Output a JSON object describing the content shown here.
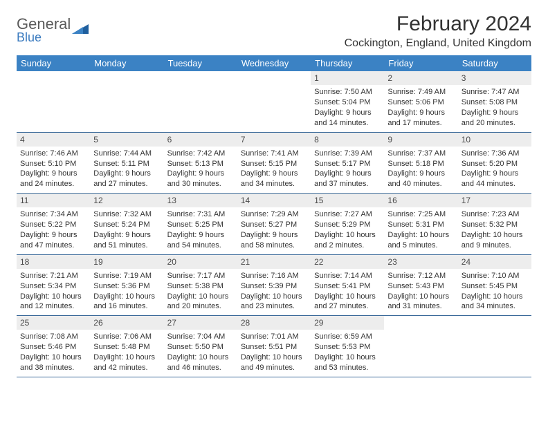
{
  "logo": {
    "text_top": "General",
    "text_bottom": "Blue"
  },
  "title": "February 2024",
  "location": "Cockington, England, United Kingdom",
  "colors": {
    "header_bg": "#3b82c4",
    "header_text": "#ffffff",
    "divider": "#3b6a9a",
    "daynum_bg": "#ededed",
    "logo_gray": "#5a5a5a",
    "logo_blue": "#3b7bbf"
  },
  "dow": [
    "Sunday",
    "Monday",
    "Tuesday",
    "Wednesday",
    "Thursday",
    "Friday",
    "Saturday"
  ],
  "weeks": [
    [
      null,
      null,
      null,
      null,
      {
        "n": "1",
        "sr": "Sunrise: 7:50 AM",
        "ss": "Sunset: 5:04 PM",
        "d1": "Daylight: 9 hours",
        "d2": "and 14 minutes."
      },
      {
        "n": "2",
        "sr": "Sunrise: 7:49 AM",
        "ss": "Sunset: 5:06 PM",
        "d1": "Daylight: 9 hours",
        "d2": "and 17 minutes."
      },
      {
        "n": "3",
        "sr": "Sunrise: 7:47 AM",
        "ss": "Sunset: 5:08 PM",
        "d1": "Daylight: 9 hours",
        "d2": "and 20 minutes."
      }
    ],
    [
      {
        "n": "4",
        "sr": "Sunrise: 7:46 AM",
        "ss": "Sunset: 5:10 PM",
        "d1": "Daylight: 9 hours",
        "d2": "and 24 minutes."
      },
      {
        "n": "5",
        "sr": "Sunrise: 7:44 AM",
        "ss": "Sunset: 5:11 PM",
        "d1": "Daylight: 9 hours",
        "d2": "and 27 minutes."
      },
      {
        "n": "6",
        "sr": "Sunrise: 7:42 AM",
        "ss": "Sunset: 5:13 PM",
        "d1": "Daylight: 9 hours",
        "d2": "and 30 minutes."
      },
      {
        "n": "7",
        "sr": "Sunrise: 7:41 AM",
        "ss": "Sunset: 5:15 PM",
        "d1": "Daylight: 9 hours",
        "d2": "and 34 minutes."
      },
      {
        "n": "8",
        "sr": "Sunrise: 7:39 AM",
        "ss": "Sunset: 5:17 PM",
        "d1": "Daylight: 9 hours",
        "d2": "and 37 minutes."
      },
      {
        "n": "9",
        "sr": "Sunrise: 7:37 AM",
        "ss": "Sunset: 5:18 PM",
        "d1": "Daylight: 9 hours",
        "d2": "and 40 minutes."
      },
      {
        "n": "10",
        "sr": "Sunrise: 7:36 AM",
        "ss": "Sunset: 5:20 PM",
        "d1": "Daylight: 9 hours",
        "d2": "and 44 minutes."
      }
    ],
    [
      {
        "n": "11",
        "sr": "Sunrise: 7:34 AM",
        "ss": "Sunset: 5:22 PM",
        "d1": "Daylight: 9 hours",
        "d2": "and 47 minutes."
      },
      {
        "n": "12",
        "sr": "Sunrise: 7:32 AM",
        "ss": "Sunset: 5:24 PM",
        "d1": "Daylight: 9 hours",
        "d2": "and 51 minutes."
      },
      {
        "n": "13",
        "sr": "Sunrise: 7:31 AM",
        "ss": "Sunset: 5:25 PM",
        "d1": "Daylight: 9 hours",
        "d2": "and 54 minutes."
      },
      {
        "n": "14",
        "sr": "Sunrise: 7:29 AM",
        "ss": "Sunset: 5:27 PM",
        "d1": "Daylight: 9 hours",
        "d2": "and 58 minutes."
      },
      {
        "n": "15",
        "sr": "Sunrise: 7:27 AM",
        "ss": "Sunset: 5:29 PM",
        "d1": "Daylight: 10 hours",
        "d2": "and 2 minutes."
      },
      {
        "n": "16",
        "sr": "Sunrise: 7:25 AM",
        "ss": "Sunset: 5:31 PM",
        "d1": "Daylight: 10 hours",
        "d2": "and 5 minutes."
      },
      {
        "n": "17",
        "sr": "Sunrise: 7:23 AM",
        "ss": "Sunset: 5:32 PM",
        "d1": "Daylight: 10 hours",
        "d2": "and 9 minutes."
      }
    ],
    [
      {
        "n": "18",
        "sr": "Sunrise: 7:21 AM",
        "ss": "Sunset: 5:34 PM",
        "d1": "Daylight: 10 hours",
        "d2": "and 12 minutes."
      },
      {
        "n": "19",
        "sr": "Sunrise: 7:19 AM",
        "ss": "Sunset: 5:36 PM",
        "d1": "Daylight: 10 hours",
        "d2": "and 16 minutes."
      },
      {
        "n": "20",
        "sr": "Sunrise: 7:17 AM",
        "ss": "Sunset: 5:38 PM",
        "d1": "Daylight: 10 hours",
        "d2": "and 20 minutes."
      },
      {
        "n": "21",
        "sr": "Sunrise: 7:16 AM",
        "ss": "Sunset: 5:39 PM",
        "d1": "Daylight: 10 hours",
        "d2": "and 23 minutes."
      },
      {
        "n": "22",
        "sr": "Sunrise: 7:14 AM",
        "ss": "Sunset: 5:41 PM",
        "d1": "Daylight: 10 hours",
        "d2": "and 27 minutes."
      },
      {
        "n": "23",
        "sr": "Sunrise: 7:12 AM",
        "ss": "Sunset: 5:43 PM",
        "d1": "Daylight: 10 hours",
        "d2": "and 31 minutes."
      },
      {
        "n": "24",
        "sr": "Sunrise: 7:10 AM",
        "ss": "Sunset: 5:45 PM",
        "d1": "Daylight: 10 hours",
        "d2": "and 34 minutes."
      }
    ],
    [
      {
        "n": "25",
        "sr": "Sunrise: 7:08 AM",
        "ss": "Sunset: 5:46 PM",
        "d1": "Daylight: 10 hours",
        "d2": "and 38 minutes."
      },
      {
        "n": "26",
        "sr": "Sunrise: 7:06 AM",
        "ss": "Sunset: 5:48 PM",
        "d1": "Daylight: 10 hours",
        "d2": "and 42 minutes."
      },
      {
        "n": "27",
        "sr": "Sunrise: 7:04 AM",
        "ss": "Sunset: 5:50 PM",
        "d1": "Daylight: 10 hours",
        "d2": "and 46 minutes."
      },
      {
        "n": "28",
        "sr": "Sunrise: 7:01 AM",
        "ss": "Sunset: 5:51 PM",
        "d1": "Daylight: 10 hours",
        "d2": "and 49 minutes."
      },
      {
        "n": "29",
        "sr": "Sunrise: 6:59 AM",
        "ss": "Sunset: 5:53 PM",
        "d1": "Daylight: 10 hours",
        "d2": "and 53 minutes."
      },
      null,
      null
    ]
  ]
}
